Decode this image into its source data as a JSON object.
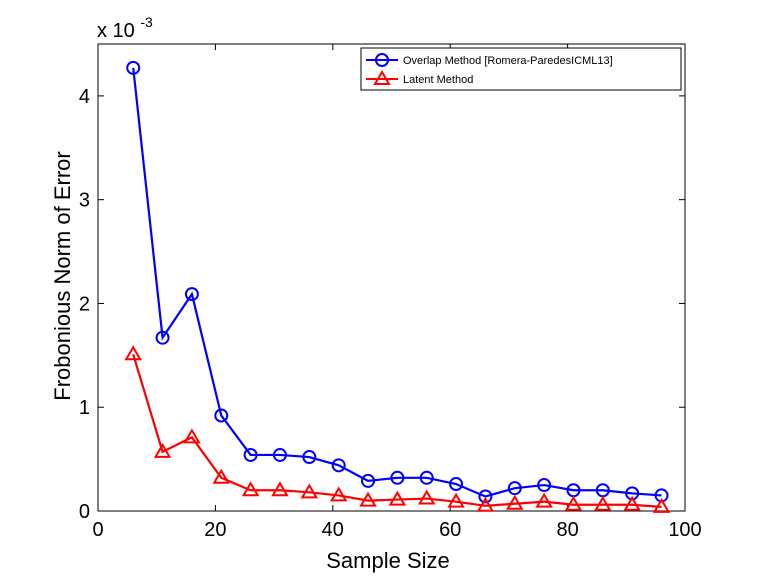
{
  "chart_data": {
    "type": "line",
    "xlabel": "Sample Size",
    "ylabel": "Frobonious Norm of Error",
    "scale_label": "x 10",
    "scale_exponent": "-3",
    "xlim": [
      0,
      100
    ],
    "ylim": [
      0,
      4.5
    ],
    "x_ticks": [
      0,
      20,
      40,
      60,
      80,
      100
    ],
    "y_ticks": [
      0,
      1,
      2,
      3,
      4
    ],
    "grid": false,
    "legend_position": "top-right",
    "x": [
      6,
      11,
      16,
      21,
      26,
      31,
      36,
      41,
      46,
      51,
      56,
      61,
      66,
      71,
      76,
      81,
      86,
      91,
      96
    ],
    "series": [
      {
        "name": "Overlap Method [Romera-ParedesICML13]",
        "color": "#0000ff",
        "marker": "circle",
        "values": [
          4.27,
          1.67,
          2.09,
          0.92,
          0.54,
          0.54,
          0.52,
          0.44,
          0.29,
          0.32,
          0.32,
          0.26,
          0.14,
          0.22,
          0.25,
          0.2,
          0.2,
          0.17,
          0.15
        ]
      },
      {
        "name": "Latent Method",
        "color": "#ff0000",
        "marker": "triangle",
        "values": [
          1.51,
          0.57,
          0.71,
          0.32,
          0.2,
          0.2,
          0.18,
          0.15,
          0.1,
          0.11,
          0.12,
          0.09,
          0.05,
          0.07,
          0.09,
          0.06,
          0.06,
          0.06,
          0.04
        ]
      }
    ]
  }
}
